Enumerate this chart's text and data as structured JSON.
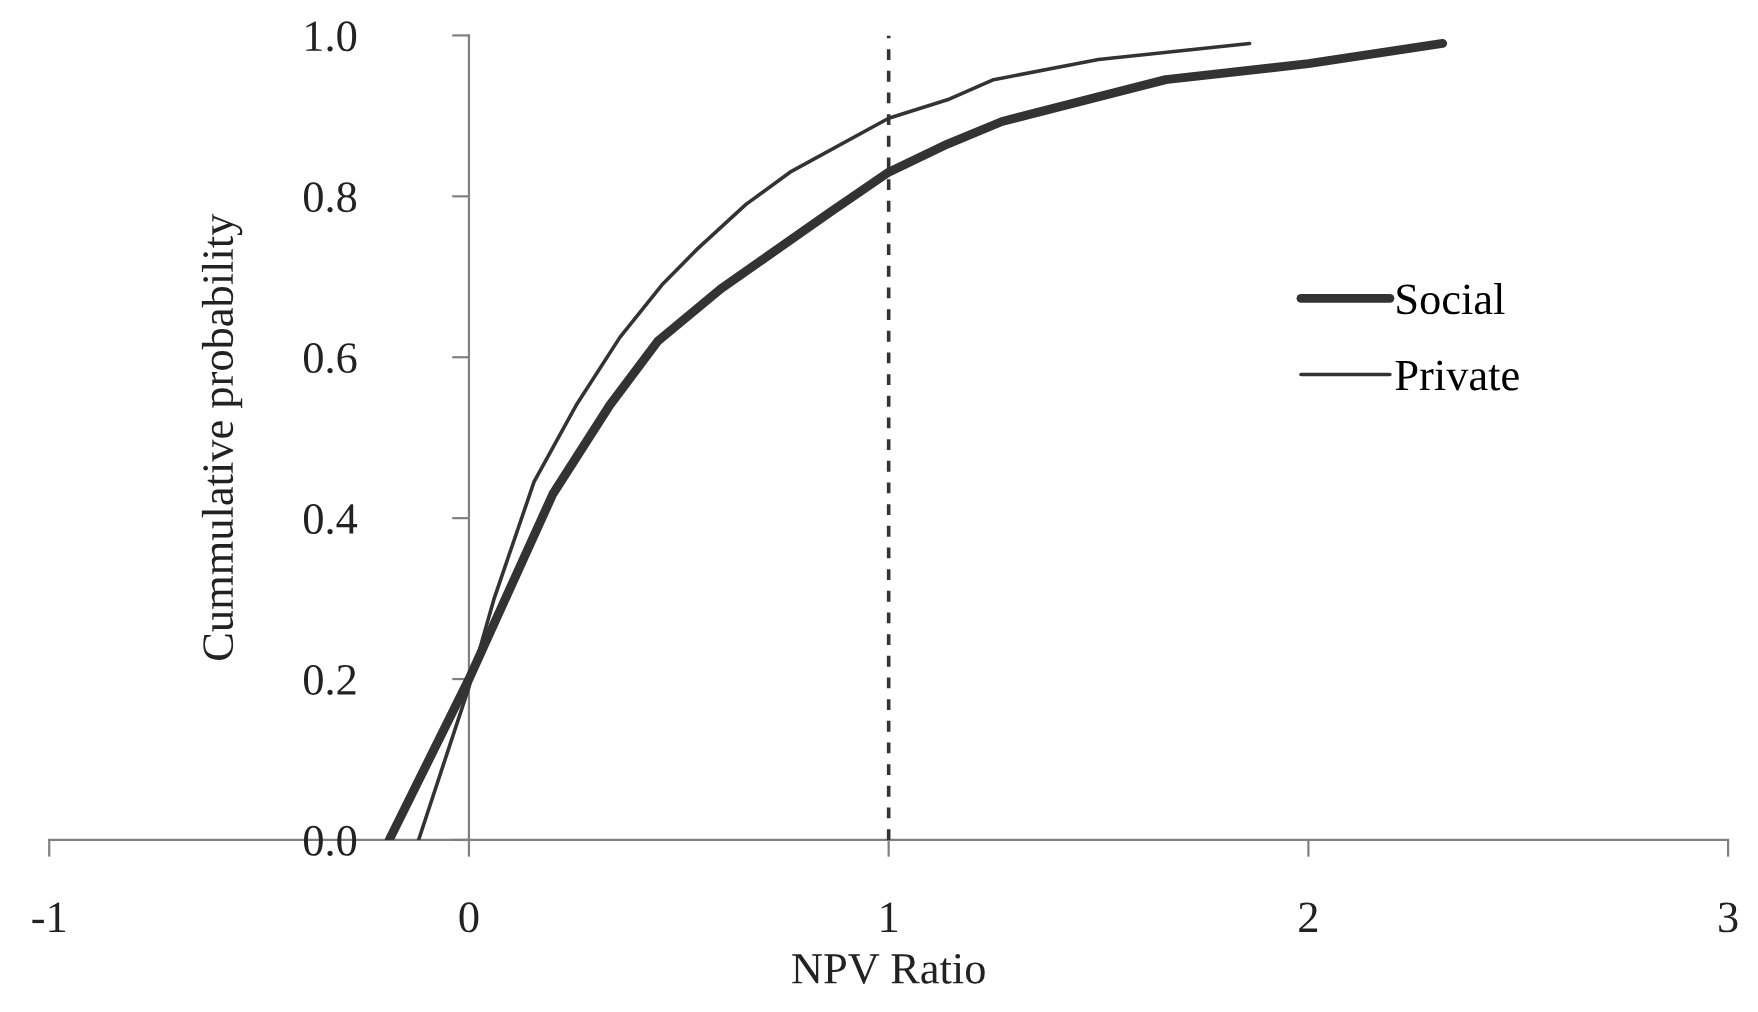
{
  "chart_data": {
    "type": "line",
    "xlabel": "NPV Ratio",
    "ylabel": "Cummulative probability",
    "xlim": [
      -1,
      3
    ],
    "ylim": [
      0,
      1.0
    ],
    "xticks": [
      -1,
      0,
      1,
      2,
      3
    ],
    "yticks": [
      {
        "value": 0,
        "label": "0.0"
      },
      {
        "value": 0.2,
        "label": "0.2"
      },
      {
        "value": 0.4,
        "label": "0.4"
      },
      {
        "value": 0.6,
        "label": "0.6"
      },
      {
        "value": 0.8,
        "label": "0.8"
      },
      {
        "value": 1.0,
        "label": "1.0"
      }
    ],
    "grid": false,
    "legend": "right",
    "marker": "none",
    "ref_lines": [
      {
        "axis": "x",
        "value": 1,
        "line_style": "dashed",
        "color": "#333333"
      }
    ],
    "series": [
      {
        "name": "Social",
        "color": "#333333",
        "x": [
          -0.19,
          0,
          0.2,
          0.335,
          0.45,
          0.6,
          0.86,
          1.0,
          1.14,
          1.27,
          1.66,
          2.0,
          2.32
        ],
        "values": [
          0,
          0.2,
          0.43,
          0.54,
          0.62,
          0.685,
          0.78,
          0.83,
          0.865,
          0.893,
          0.945,
          0.965,
          0.99
        ]
      },
      {
        "name": "Private",
        "color": "#333333",
        "x": [
          -0.12,
          0,
          0.06,
          0.155,
          0.255,
          0.36,
          0.46,
          0.545,
          0.66,
          0.765,
          1.0,
          1.14,
          1.25,
          1.5,
          1.86
        ],
        "values": [
          0,
          0.19,
          0.3,
          0.445,
          0.54,
          0.625,
          0.69,
          0.735,
          0.79,
          0.83,
          0.897,
          0.92,
          0.945,
          0.97,
          0.99
        ]
      }
    ]
  }
}
